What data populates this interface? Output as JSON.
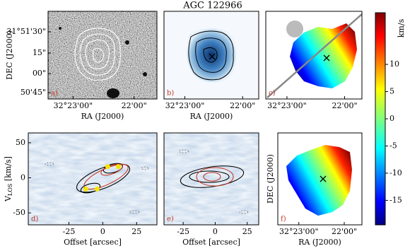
{
  "title": "AGC 122966",
  "chart_data": [
    {
      "type": "image",
      "label": "a)",
      "xlabel": "RA (J2000)",
      "ylabel": "DEC (J2000)",
      "xtick_labels": [
        "32°23'00\"",
        "22'00\""
      ],
      "ytick_labels": [
        "31°51'30\"",
        "15\"",
        "00\"",
        "50'45\""
      ]
    },
    {
      "type": "image",
      "label": "b)",
      "xlabel": "RA (J2000)",
      "xtick_labels": [
        "32°23'00\"",
        "22'00\""
      ]
    },
    {
      "type": "velocity-field",
      "label": "c)",
      "xtick_labels": [
        "32°23'00\"",
        "22'00\""
      ]
    },
    {
      "type": "pv",
      "label": "d)",
      "xlabel": "Offset [arcsec]",
      "ylabel": {
        "main": "V",
        "sub": "LOS",
        "unit": " [km/s]"
      },
      "xlim": [
        -55,
        40
      ],
      "ylim": [
        -67,
        64
      ],
      "xticks": [
        -25,
        0,
        25
      ],
      "yticks": [
        -50,
        0,
        50
      ],
      "points": {
        "color": "#f5e400",
        "x": [
          3.6,
          11.5,
          -4.2,
          -12.5
        ],
        "y": [
          16,
          16,
          -16,
          -16
        ]
      }
    },
    {
      "type": "pv",
      "label": "e)",
      "xlabel": "Offset [arcsec]",
      "xlim": [
        -40,
        34
      ],
      "ylim": [
        -67,
        64
      ],
      "xticks": [
        -25,
        0,
        25
      ]
    },
    {
      "type": "velocity-field",
      "label": "f)",
      "xlabel": "RA (J2000)",
      "ylabel": "DEC (J2000)",
      "xtick_labels": [
        "32°23'00\"",
        "22'00\""
      ]
    }
  ],
  "colorbar": {
    "label": "km/s",
    "lim": [
      -19.5,
      19.5
    ],
    "ticks": [
      -15,
      -10,
      -5,
      0,
      5,
      10
    ]
  }
}
